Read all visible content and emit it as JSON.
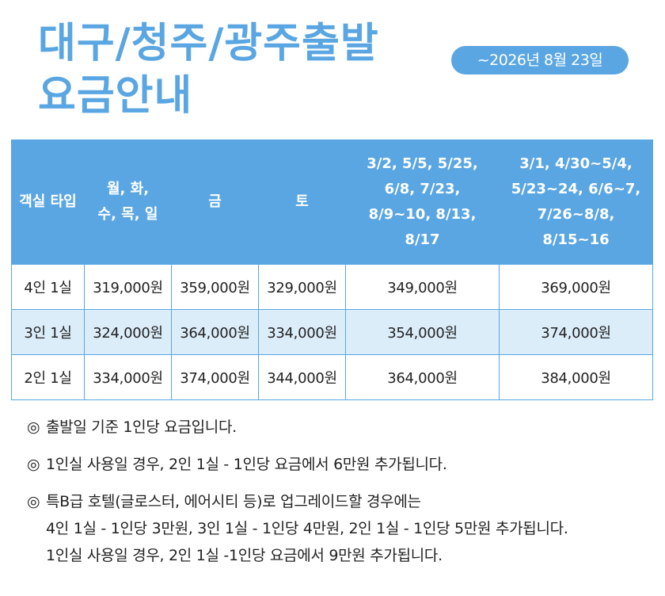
{
  "title": {
    "line1": "대구/청주/광주출발",
    "line2": "요금안내"
  },
  "date_badge": "~2026년 8월 23일",
  "table": {
    "headers": [
      "객실 타입",
      "월, 화, 수, 목, 일",
      "금",
      "토",
      "3/2, 5/5, 5/25, 6/8, 7/23, 8/9~10, 8/13, 8/17",
      "3/1, 4/30~5/4, 5/23~24, 6/6~7, 7/26~8/8, 8/15~16"
    ],
    "rows": [
      [
        "4인 1실",
        "319,000원",
        "359,000원",
        "329,000원",
        "349,000원",
        "369,000원"
      ],
      [
        "3인 1실",
        "324,000원",
        "364,000원",
        "334,000원",
        "354,000원",
        "374,000원"
      ],
      [
        "2인 1실",
        "334,000원",
        "374,000원",
        "344,000원",
        "364,000원",
        "384,000원"
      ]
    ]
  },
  "notes": {
    "mark": "◎",
    "note1": "출발일 기준 1인당 요금입니다.",
    "note2": "1인실 사용일 경우, 2인 1실 - 1인당 요금에서 6만원 추가됩니다.",
    "note3_line1": "특B급 호텔(글로스터, 에어시티 등)로 업그레이드할 경우에는",
    "note3_line2": "4인 1실 - 1인당 3만원, 3인 1실 - 1인당 4만원, 2인 1실 - 1인당 5만원 추가됩니다.",
    "note3_line3": "1인실 사용일 경우, 2인 1실 -1인당 요금에서 9만원 추가됩니다."
  },
  "colors": {
    "accent": "#5aa6e2",
    "row_alt": "#dcedfa"
  }
}
